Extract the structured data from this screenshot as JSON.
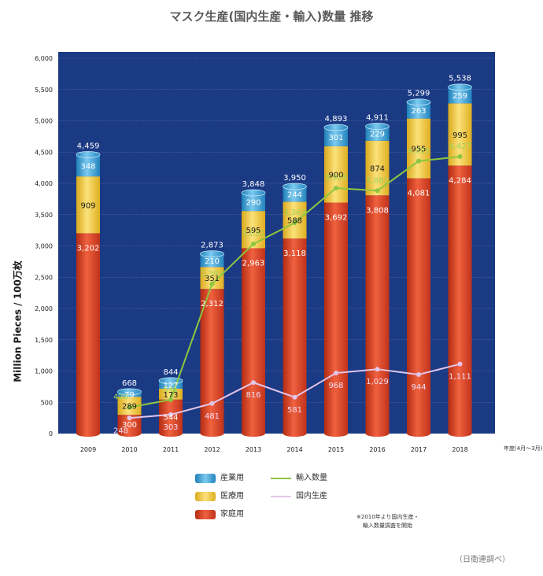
{
  "title": "マスク生産(国内生産・輸入)数量 推移",
  "ylabel": "Million Pieces / 100万枚",
  "x_unit": "年度(4月～3月)",
  "note": [
    "※2010年より国内生産・",
    "輸入数量調査を開始"
  ],
  "source": "（日衛連調べ）",
  "colors": {
    "background": "#1b3a84",
    "household": "#e4472a",
    "medical": "#f5cf34",
    "industrial": "#3aa3d9",
    "import": "#8dc63f",
    "domestic": "#e3c6ea"
  },
  "legend": {
    "industrial": "産業用",
    "medical": "医療用",
    "household": "家庭用",
    "import": "輸入数量",
    "domestic": "国内生産"
  },
  "chart_data": {
    "type": "bar",
    "stacked": true,
    "categories": [
      "2009",
      "2010",
      "2011",
      "2012",
      "2013",
      "2014",
      "2015",
      "2016",
      "2017",
      "2018"
    ],
    "ylim": [
      0,
      6000
    ],
    "yticks": [
      "0",
      "500",
      "1,000",
      "1,500",
      "2,000",
      "2,500",
      "3,000",
      "3,500",
      "4,000",
      "4,500",
      "5,000",
      "5,500",
      "6,000"
    ],
    "series": [
      {
        "name": "家庭用",
        "values": [
          3202,
          300,
          544,
          2312,
          2963,
          3118,
          3692,
          3808,
          4081,
          4284
        ],
        "labels": [
          "3,202",
          "300",
          "544",
          "2,312",
          "2,963",
          "3,118",
          "3,692",
          "3,808",
          "4,081",
          "4,284"
        ]
      },
      {
        "name": "医療用",
        "values": [
          909,
          289,
          173,
          351,
          595,
          588,
          900,
          874,
          955,
          995
        ],
        "labels": [
          "909",
          "289",
          "173",
          "351",
          "595",
          "588",
          "900",
          "874",
          "955",
          "995"
        ]
      },
      {
        "name": "産業用",
        "values": [
          348,
          79,
          127,
          210,
          290,
          244,
          301,
          229,
          263,
          259
        ],
        "labels": [
          "348",
          "79",
          "127",
          "210",
          "290",
          "244",
          "301",
          "229",
          "263",
          "259"
        ]
      }
    ],
    "totals": [
      4459,
      668,
      844,
      2873,
      3848,
      3950,
      4893,
      4911,
      5299,
      5538
    ],
    "total_labels": [
      "4,459",
      "668",
      "844",
      "2,873",
      "3,848",
      "3,950",
      "4,893",
      "4,911",
      "5,299",
      "5,538"
    ],
    "lines": [
      {
        "name": "輸入数量",
        "values": [
          null,
          420,
          541,
          2392,
          3032,
          3369,
          3925,
          3882,
          4355,
          4427
        ],
        "labels": [
          null,
          "420",
          "541",
          "2,392",
          "3,032",
          "3,369",
          "3,925",
          "3,882",
          "4,355",
          "4,427"
        ]
      },
      {
        "name": "国内生産",
        "values": [
          null,
          248,
          303,
          481,
          816,
          581,
          968,
          1029,
          944,
          1111
        ],
        "labels": [
          null,
          "248",
          "303",
          "481",
          "816",
          "581",
          "968",
          "1,029",
          "944",
          "1,111"
        ]
      }
    ]
  }
}
